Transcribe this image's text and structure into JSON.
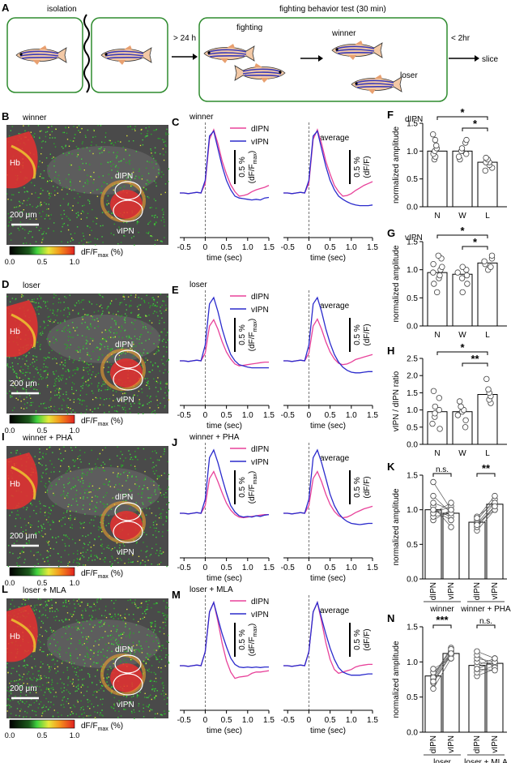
{
  "panelA": {
    "label": "A",
    "isolation": "isolation",
    "time1": "> 24 h",
    "test_title": "fighting behavior test (30 min)",
    "fighting": "fighting",
    "winner": "winner",
    "loser": "loser",
    "time2": "< 2hr",
    "slice": "slice"
  },
  "image_panels": [
    {
      "label": "B",
      "title": "winner",
      "hb": "Hb",
      "dipn": "dIPN",
      "vipn": "vIPN",
      "scale": "200 μm",
      "bright": 0.5
    },
    {
      "label": "D",
      "title": "loser",
      "hb": "Hb",
      "dipn": "dIPN",
      "vipn": "vIPN",
      "scale": "200 μm",
      "bright": 0.75
    },
    {
      "label": "I",
      "title": "winner + PHA",
      "hb": "Hb",
      "dipn": "dIPN",
      "vipn": "vIPN",
      "scale": "200 μm",
      "bright": 0.6
    },
    {
      "label": "L",
      "title": "loser + MLA",
      "hb": "Hb",
      "dipn": "dIPN",
      "vipn": "vIPN",
      "scale": "200 μm",
      "bright": 0.8
    }
  ],
  "colorbar": {
    "ticks": [
      "0.0",
      "0.5",
      "1.0"
    ],
    "unit": "dF/F",
    "unit_sub": "max",
    "unit_tail": " (%)"
  },
  "colors": {
    "dIPN": "#e8429a",
    "vIPN": "#2b2bcc",
    "panel_border": "#2e8b2e"
  },
  "chart_data": [
    {
      "type": "line",
      "panel": "C",
      "title": "winner",
      "subtitle": "average",
      "xlabel": "time (sec)",
      "xticks": [
        "-0.5",
        "0",
        "0.5",
        "1.0",
        "1.5"
      ],
      "xlim": [
        -0.6,
        1.5
      ],
      "scalebar_l": "0.5 %",
      "scalebar_l2": "(dF/F",
      "scalebar_l2_sub": "max",
      "scalebar_l2_tail": ")",
      "scalebar_r": "0.5 %",
      "scalebar_r2": "(dF/F)",
      "x": [
        -0.6,
        -0.5,
        -0.4,
        -0.3,
        -0.2,
        -0.1,
        0,
        0.1,
        0.2,
        0.3,
        0.4,
        0.5,
        0.6,
        0.7,
        0.8,
        0.9,
        1.0,
        1.1,
        1.2,
        1.3,
        1.4,
        1.5
      ],
      "series": [
        {
          "name": "dIPN",
          "left": [
            0,
            0,
            -0.01,
            0,
            0.01,
            0,
            0.15,
            0.85,
            1.0,
            0.78,
            0.5,
            0.3,
            0.13,
            0.02,
            -0.05,
            -0.04,
            -0.02,
            0.02,
            0.05,
            0.07,
            0.09,
            0.12
          ],
          "right": [
            0,
            0,
            -0.01,
            0,
            0.01,
            0,
            0.15,
            0.85,
            1.0,
            0.78,
            0.5,
            0.3,
            0.12,
            0.02,
            -0.05,
            -0.04,
            -0.01,
            0.04,
            0.08,
            0.12,
            0.15,
            0.18
          ]
        },
        {
          "name": "vIPN",
          "left": [
            0,
            0,
            -0.01,
            0,
            0.01,
            0,
            0.2,
            0.9,
            0.98,
            0.7,
            0.42,
            0.2,
            0.05,
            -0.05,
            -0.08,
            -0.09,
            -0.1,
            -0.11,
            -0.1,
            -0.11,
            -0.08,
            -0.07
          ],
          "right": [
            0,
            0,
            -0.01,
            0,
            0.01,
            0,
            0.2,
            0.9,
            0.98,
            0.7,
            0.42,
            0.2,
            0.05,
            -0.05,
            -0.1,
            -0.14,
            -0.17,
            -0.19,
            -0.2,
            -0.2,
            -0.2,
            -0.19
          ]
        }
      ]
    },
    {
      "type": "line",
      "panel": "E",
      "title": "loser",
      "subtitle": "average",
      "xlabel": "time (sec)",
      "xticks": [
        "-0.5",
        "0",
        "0.5",
        "1.0",
        "1.5"
      ],
      "xlim": [
        -0.6,
        1.5
      ],
      "scalebar_l": "0.5 %",
      "scalebar_l2": "(dF/F",
      "scalebar_l2_sub": "max",
      "scalebar_l2_tail": ")",
      "scalebar_r": "0.5 %",
      "scalebar_r2": "(dF/F)",
      "x": [
        -0.6,
        -0.5,
        -0.4,
        -0.3,
        -0.2,
        -0.1,
        0,
        0.1,
        0.2,
        0.3,
        0.4,
        0.5,
        0.6,
        0.7,
        0.8,
        0.9,
        1.0,
        1.1,
        1.2,
        1.3,
        1.4,
        1.5
      ],
      "series": [
        {
          "name": "dIPN",
          "left": [
            0,
            0,
            -0.01,
            0,
            0.01,
            0,
            0.12,
            0.55,
            0.65,
            0.5,
            0.3,
            0.14,
            0.03,
            -0.05,
            -0.08,
            -0.07,
            -0.06,
            -0.05,
            -0.04,
            -0.03,
            -0.02,
            -0.02
          ],
          "right": [
            0,
            0,
            -0.01,
            0,
            0.01,
            0,
            0.12,
            0.55,
            0.66,
            0.5,
            0.3,
            0.14,
            0.03,
            -0.04,
            -0.06,
            -0.05,
            -0.02,
            0.02,
            0.04,
            0.06,
            0.08,
            0.1
          ]
        },
        {
          "name": "vIPN",
          "left": [
            0,
            0,
            -0.01,
            0,
            0.01,
            0,
            0.25,
            0.9,
            1.0,
            0.78,
            0.5,
            0.28,
            0.1,
            0,
            -0.06,
            -0.08,
            -0.1,
            -0.11,
            -0.11,
            -0.11,
            -0.11,
            -0.11
          ],
          "right": [
            0,
            0,
            -0.01,
            0,
            0.01,
            0,
            0.25,
            0.9,
            1.0,
            0.78,
            0.5,
            0.28,
            0.1,
            -0.02,
            -0.1,
            -0.15,
            -0.18,
            -0.19,
            -0.19,
            -0.18,
            -0.17,
            -0.17
          ]
        }
      ]
    },
    {
      "type": "line",
      "panel": "J",
      "title": "winner + PHA",
      "subtitle": "average",
      "xlabel": "time (sec)",
      "xticks": [
        "-0.5",
        "0",
        "0.5",
        "1.0",
        "1.5"
      ],
      "xlim": [
        -0.6,
        1.5
      ],
      "scalebar_l": "0.5 %",
      "scalebar_l2": "(dF/F",
      "scalebar_l2_sub": "max",
      "scalebar_l2_tail": ")",
      "scalebar_r": "0.5 %",
      "scalebar_r2": "(dF/F)",
      "x": [
        -0.6,
        -0.5,
        -0.4,
        -0.3,
        -0.2,
        -0.1,
        0,
        0.1,
        0.2,
        0.3,
        0.4,
        0.5,
        0.6,
        0.7,
        0.8,
        0.9,
        1.0,
        1.1,
        1.2,
        1.3,
        1.4,
        1.5
      ],
      "series": [
        {
          "name": "dIPN",
          "left": [
            0,
            0,
            -0.01,
            0,
            0.01,
            0,
            0.12,
            0.55,
            0.66,
            0.5,
            0.32,
            0.16,
            0.05,
            -0.02,
            -0.06,
            -0.07,
            -0.06,
            -0.05,
            -0.04,
            -0.03,
            -0.02,
            -0.02
          ],
          "right": [
            0,
            0,
            -0.01,
            0,
            0.01,
            0,
            0.12,
            0.55,
            0.66,
            0.5,
            0.3,
            0.14,
            0.03,
            -0.04,
            -0.07,
            -0.06,
            -0.03,
            0.01,
            0.04,
            0.07,
            0.09,
            0.11
          ]
        },
        {
          "name": "vIPN",
          "left": [
            0,
            0,
            -0.01,
            0,
            0.01,
            0,
            0.22,
            0.88,
            1.0,
            0.8,
            0.55,
            0.32,
            0.12,
            0.02,
            -0.04,
            -0.06,
            -0.05,
            -0.06,
            -0.04,
            -0.05,
            -0.03,
            -0.02
          ],
          "right": [
            0,
            0,
            -0.01,
            0,
            0.01,
            0,
            0.22,
            0.88,
            1.0,
            0.8,
            0.55,
            0.3,
            0.12,
            0,
            -0.08,
            -0.13,
            -0.16,
            -0.17,
            -0.18,
            -0.17,
            -0.16,
            -0.16
          ]
        }
      ]
    },
    {
      "type": "line",
      "panel": "M",
      "title": "loser + MLA",
      "subtitle": "average",
      "xlabel": "time (sec)",
      "xticks": [
        "-0.5",
        "0",
        "0.5",
        "1.0",
        "1.5"
      ],
      "xlim": [
        -0.6,
        1.5
      ],
      "scalebar_l": "0.5 %",
      "scalebar_l2": "(dF/F",
      "scalebar_l2_sub": "max",
      "scalebar_l2_tail": ")",
      "scalebar_r": "0.5 %",
      "scalebar_r2": "(dF/F)",
      "x": [
        -0.6,
        -0.5,
        -0.4,
        -0.3,
        -0.2,
        -0.1,
        0,
        0.1,
        0.2,
        0.3,
        0.4,
        0.5,
        0.6,
        0.7,
        0.8,
        0.9,
        1.0,
        1.1,
        1.2,
        1.3,
        1.4,
        1.5
      ],
      "series": [
        {
          "name": "dIPN",
          "left": [
            0,
            0,
            -0.01,
            0,
            0.01,
            0,
            0.22,
            0.85,
            1.0,
            0.7,
            0.35,
            0.08,
            -0.1,
            -0.2,
            -0.18,
            -0.17,
            -0.16,
            -0.12,
            -0.1,
            -0.1,
            -0.09,
            -0.08
          ],
          "right": [
            0,
            0,
            -0.01,
            0,
            0.01,
            0,
            0.22,
            0.85,
            1.0,
            0.7,
            0.36,
            0.1,
            -0.06,
            -0.12,
            -0.1,
            -0.08,
            -0.06,
            -0.02,
            0,
            0.01,
            0.02,
            0.02
          ]
        },
        {
          "name": "vIPN",
          "left": [
            0,
            0,
            -0.01,
            0,
            0.01,
            0,
            0.22,
            0.85,
            1.0,
            0.75,
            0.5,
            0.3,
            0.12,
            0.02,
            -0.02,
            -0.03,
            -0.02,
            -0.03,
            -0.02,
            -0.03,
            -0.02,
            -0.02
          ],
          "right": [
            0,
            0,
            -0.01,
            0,
            0.01,
            0,
            0.22,
            0.85,
            1.0,
            0.75,
            0.5,
            0.28,
            0.1,
            -0.03,
            -0.1,
            -0.13,
            -0.15,
            -0.15,
            -0.15,
            -0.14,
            -0.13,
            -0.13
          ]
        }
      ]
    },
    {
      "type": "bar",
      "panel": "F",
      "title": "dIPN",
      "ylabel": "normalized amplitude",
      "categories": [
        "N",
        "W",
        "L"
      ],
      "values": [
        1.0,
        1.0,
        0.8
      ],
      "ylim": [
        0,
        1.5
      ],
      "yticks": [
        "0.0",
        "0.5",
        "1.0",
        "1.5"
      ],
      "points": [
        [
          0.85,
          0.9,
          0.95,
          1.0,
          1.05,
          1.1,
          1.2,
          1.3
        ],
        [
          0.85,
          0.9,
          0.95,
          1.0,
          1.0,
          1.05,
          1.15,
          1.2
        ],
        [
          0.65,
          0.7,
          0.75,
          0.8,
          0.8,
          0.85,
          0.88
        ]
      ],
      "sig": [
        {
          "from": 0,
          "to": 2,
          "text": "*"
        },
        {
          "from": 1,
          "to": 2,
          "text": "*"
        }
      ]
    },
    {
      "type": "bar",
      "panel": "G",
      "title": "vIPN",
      "ylabel": "normalized amplitude",
      "categories": [
        "N",
        "W",
        "L"
      ],
      "values": [
        0.95,
        0.92,
        1.12
      ],
      "ylim": [
        0,
        1.5
      ],
      "yticks": [
        "0.0",
        "0.5",
        "1.0",
        "1.5"
      ],
      "points": [
        [
          0.6,
          0.75,
          0.85,
          0.9,
          0.95,
          1.0,
          1.05,
          1.1,
          1.2,
          1.25
        ],
        [
          0.6,
          0.75,
          0.85,
          0.9,
          0.95,
          1.0,
          1.05
        ],
        [
          1.0,
          1.05,
          1.1,
          1.15,
          1.2,
          1.25
        ]
      ],
      "sig": [
        {
          "from": 0,
          "to": 2,
          "text": "*"
        },
        {
          "from": 1,
          "to": 2,
          "text": "*"
        }
      ]
    },
    {
      "type": "bar",
      "panel": "H",
      "ylabel": "vIPN / dIPN ratio",
      "categories": [
        "N",
        "W",
        "L"
      ],
      "values": [
        0.95,
        0.95,
        1.45
      ],
      "ylim": [
        0,
        2.5
      ],
      "yticks": [
        "0.0",
        "0.5",
        "1.0",
        "1.5",
        "2.0",
        "2.5"
      ],
      "points": [
        [
          0.45,
          0.6,
          0.8,
          0.9,
          1.0,
          1.1,
          1.35,
          1.55
        ],
        [
          0.5,
          0.7,
          0.85,
          0.95,
          1.0,
          1.1,
          1.25
        ],
        [
          1.2,
          1.3,
          1.4,
          1.5,
          1.6,
          1.9
        ]
      ],
      "sig": [
        {
          "from": 0,
          "to": 2,
          "text": "*"
        },
        {
          "from": 1,
          "to": 2,
          "text": "**"
        }
      ]
    },
    {
      "type": "bar_paired",
      "panel": "K",
      "ylabel": "normalized amplitude",
      "groups": [
        {
          "name": "winner",
          "categories": [
            "dIPN",
            "vIPN"
          ],
          "values": [
            1.0,
            0.95
          ],
          "pairs": [
            [
              0.85,
              1.0
            ],
            [
              0.9,
              0.95
            ],
            [
              0.95,
              1.05
            ],
            [
              1.0,
              0.9
            ],
            [
              1.05,
              0.75
            ],
            [
              1.1,
              1.0
            ],
            [
              1.2,
              0.95
            ],
            [
              1.4,
              1.0
            ],
            [
              0.95,
              1.1
            ],
            [
              1.0,
              0.85
            ]
          ]
        },
        {
          "name": "winner + PHA",
          "categories": [
            "dIPN",
            "vIPN"
          ],
          "values": [
            0.82,
            1.08
          ],
          "pairs": [
            [
              0.7,
              1.0
            ],
            [
              0.75,
              1.05
            ],
            [
              0.8,
              1.1
            ],
            [
              0.85,
              1.15
            ],
            [
              0.9,
              1.1
            ],
            [
              0.8,
              1.0
            ],
            [
              0.88,
              1.2
            ],
            [
              0.78,
              1.05
            ]
          ]
        }
      ],
      "ylim": [
        0,
        1.5
      ],
      "yticks": [
        "0.0",
        "0.5",
        "1.0",
        "1.5"
      ],
      "sig": [
        {
          "group": 0,
          "text": "n.s."
        },
        {
          "group": 1,
          "text": "**"
        }
      ]
    },
    {
      "type": "bar_paired",
      "panel": "N",
      "ylabel": "normalized amplitude",
      "groups": [
        {
          "name": "loser",
          "categories": [
            "dIPN",
            "vIPN"
          ],
          "values": [
            0.8,
            1.12
          ],
          "pairs": [
            [
              0.62,
              1.05
            ],
            [
              0.7,
              1.1
            ],
            [
              0.75,
              1.15
            ],
            [
              0.8,
              1.2
            ],
            [
              0.85,
              1.1
            ],
            [
              0.9,
              1.05
            ],
            [
              0.78,
              1.18
            ],
            [
              0.72,
              1.12
            ]
          ]
        },
        {
          "name": "loser + MLA",
          "categories": [
            "dIPN",
            "vIPN"
          ],
          "values": [
            0.95,
            0.98
          ],
          "pairs": [
            [
              0.8,
              0.9
            ],
            [
              0.85,
              0.95
            ],
            [
              0.9,
              1.0
            ],
            [
              0.95,
              1.05
            ],
            [
              1.0,
              0.95
            ],
            [
              1.05,
              1.0
            ],
            [
              1.1,
              0.92
            ],
            [
              1.15,
              1.05
            ],
            [
              0.9,
              0.88
            ]
          ]
        }
      ],
      "ylim": [
        0,
        1.5
      ],
      "yticks": [
        "0.0",
        "0.5",
        "1.0",
        "1.5"
      ],
      "sig": [
        {
          "group": 0,
          "text": "***"
        },
        {
          "group": 1,
          "text": "n.s."
        }
      ]
    }
  ]
}
